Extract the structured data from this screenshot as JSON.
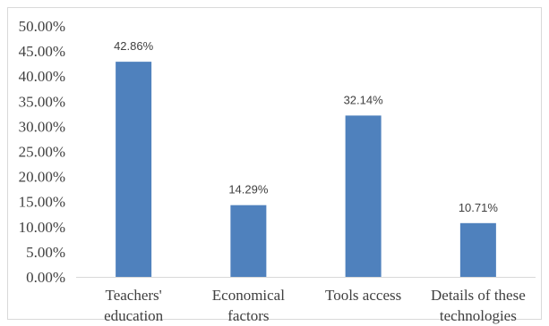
{
  "chart_data": {
    "type": "bar",
    "title": "",
    "xlabel": "",
    "ylabel": "",
    "categories": [
      [
        "Teachers'",
        "education"
      ],
      [
        "Economical",
        "factors"
      ],
      [
        "Tools access"
      ],
      [
        "Details of these",
        "technologies"
      ]
    ],
    "values": [
      42.86,
      14.29,
      32.14,
      10.71
    ],
    "data_labels": [
      "42.86%",
      "14.29%",
      "32.14%",
      "10.71%"
    ],
    "ylim": [
      0,
      50
    ],
    "yticks": [
      0,
      5,
      10,
      15,
      20,
      25,
      30,
      35,
      40,
      45,
      50
    ],
    "ytick_labels": [
      "0.00%",
      "5.00%",
      "10.00%",
      "15.00%",
      "20.00%",
      "25.00%",
      "30.00%",
      "35.00%",
      "40.00%",
      "45.00%",
      "50.00%"
    ],
    "grid": false,
    "legend": "none",
    "bar_color": "#4f81bd"
  }
}
